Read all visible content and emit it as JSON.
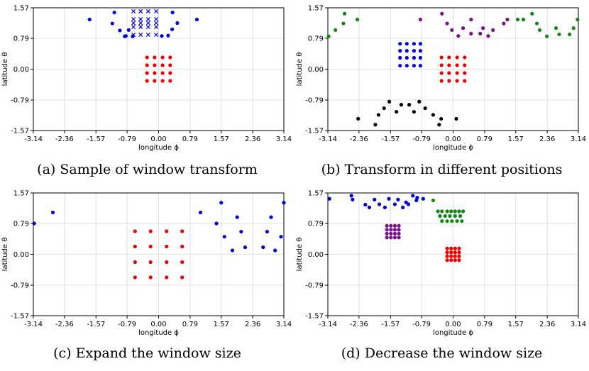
{
  "chart_data": [
    {
      "type": "scatter",
      "caption": "(a) Sample of window transform",
      "xlabel": "longitude ϕ",
      "ylabel": "latitude θ",
      "xlim": [
        -3.14,
        3.14
      ],
      "ylim": [
        -1.57,
        1.57
      ],
      "xticks": [
        -3.14,
        -2.36,
        -1.57,
        -0.79,
        0.0,
        0.79,
        1.57,
        2.36,
        3.14
      ],
      "xtick_labels": [
        "-3.14",
        "-2.36",
        "-1.57",
        "-0.79",
        "0.00",
        "0.79",
        "1.57",
        "2.36",
        "3.14"
      ],
      "yticks": [
        1.57,
        0.79,
        0.0,
        -0.79,
        -1.57
      ],
      "ytick_labels": [
        "1.57",
        "0.79",
        "0.00",
        "-0.79",
        "-1.57"
      ],
      "grid": true,
      "series": [
        {
          "name": "sampled window (blue dots)",
          "color": "#0000dd",
          "marker": "dot",
          "x": [
            -1.73,
            -1.11,
            -1.16,
            -0.97,
            -0.85,
            -0.65,
            -0.75,
            0.35,
            0.47,
            0.34,
            0.24,
            0.08,
            0.96,
            -0.82
          ],
          "y": [
            1.27,
            1.45,
            1.17,
            0.99,
            0.84,
            0.84,
            1.0,
            1.45,
            1.18,
            1.02,
            0.86,
            0.85,
            1.27,
            0.85
          ]
        },
        {
          "name": "original window (blue crosses)",
          "color": "#0000dd",
          "marker": "x",
          "x": [
            -0.63,
            -0.45,
            -0.26,
            -0.06,
            -0.63,
            -0.45,
            -0.26,
            -0.06,
            -0.63,
            -0.45,
            -0.26,
            -0.06,
            -0.63,
            -0.45,
            -0.26,
            -0.06,
            -0.63,
            -0.45,
            -0.26,
            -0.06
          ],
          "y": [
            1.48,
            1.48,
            1.48,
            1.48,
            1.28,
            1.28,
            1.28,
            1.28,
            1.08,
            1.08,
            1.08,
            1.08,
            0.88,
            0.88,
            0.88,
            0.88,
            1.18,
            1.18,
            1.18,
            1.18
          ]
        },
        {
          "name": "equator window (red dots)",
          "color": "#ee0000",
          "marker": "dot",
          "x": [
            -0.29,
            -0.1,
            0.1,
            0.29,
            -0.29,
            -0.1,
            0.1,
            0.29,
            -0.29,
            -0.1,
            0.1,
            0.29,
            -0.29,
            -0.1,
            0.1,
            0.29
          ],
          "y": [
            0.3,
            0.3,
            0.3,
            0.3,
            0.1,
            0.1,
            0.1,
            0.1,
            -0.1,
            -0.1,
            -0.1,
            -0.1,
            -0.3,
            -0.3,
            -0.3,
            -0.3
          ]
        }
      ]
    },
    {
      "type": "scatter",
      "caption": "(b) Transform in different positions",
      "xlabel": "longitude ϕ",
      "ylabel": "latitude θ",
      "xlim": [
        -3.14,
        3.14
      ],
      "ylim": [
        -1.57,
        1.57
      ],
      "xticks": [
        -3.14,
        -2.36,
        -1.57,
        -0.79,
        0.0,
        0.79,
        1.57,
        2.36,
        3.14
      ],
      "xtick_labels": [
        "-3.14",
        "-2.36",
        "-1.57",
        "-0.79",
        "0.00",
        "0.79",
        "1.57",
        "2.36",
        "3.14"
      ],
      "yticks": [
        1.57,
        0.79,
        0.0,
        -0.79,
        -1.57
      ],
      "ytick_labels": [
        "1.57",
        "0.79",
        "0.00",
        "-0.79",
        "-1.57"
      ],
      "grid": true,
      "series": [
        {
          "name": "green window",
          "color": "#118811",
          "marker": "dot",
          "x": [
            -3.12,
            -2.95,
            -2.75,
            -2.72,
            -2.4,
            1.62,
            1.98,
            2.1,
            2.17,
            2.35,
            2.58,
            2.66,
            2.92,
            3.12,
            3.02,
            1.76
          ],
          "y": [
            0.84,
            1.0,
            1.17,
            1.42,
            1.27,
            1.27,
            1.42,
            1.17,
            1.0,
            0.84,
            1.05,
            0.89,
            0.89,
            1.27,
            1.05,
            1.27
          ]
        },
        {
          "name": "purple window",
          "color": "#771188",
          "marker": "dot",
          "x": [
            -0.82,
            -0.28,
            -0.15,
            -0.03,
            0.13,
            0.25,
            0.45,
            0.68,
            0.75,
            0.88,
            1.0,
            1.27,
            0.45,
            1.36
          ],
          "y": [
            1.27,
            1.42,
            1.17,
            1.0,
            0.85,
            1.05,
            0.91,
            0.91,
            1.05,
            0.85,
            1.0,
            1.17,
            1.27,
            1.27
          ]
        },
        {
          "name": "blue window",
          "color": "#0000dd",
          "marker": "dot",
          "x": [
            -1.33,
            -1.16,
            -0.98,
            -0.82,
            -1.33,
            -1.16,
            -0.98,
            -0.82,
            -1.33,
            -1.16,
            -0.98,
            -0.82,
            -1.33,
            -1.16,
            -0.98,
            -0.82
          ],
          "y": [
            0.65,
            0.65,
            0.65,
            0.65,
            0.47,
            0.47,
            0.47,
            0.47,
            0.29,
            0.29,
            0.29,
            0.29,
            0.09,
            0.09,
            0.09,
            0.09
          ]
        },
        {
          "name": "red window",
          "color": "#ee0000",
          "marker": "dot",
          "x": [
            -0.29,
            -0.1,
            0.1,
            0.29,
            -0.29,
            -0.1,
            0.1,
            0.29,
            -0.29,
            -0.1,
            0.1,
            0.29,
            -0.29,
            -0.1,
            0.1,
            0.29
          ],
          "y": [
            0.3,
            0.3,
            0.3,
            0.3,
            0.1,
            0.1,
            0.1,
            0.1,
            -0.1,
            -0.1,
            -0.1,
            -0.1,
            -0.3,
            -0.3,
            -0.3,
            -0.3
          ]
        },
        {
          "name": "black window",
          "color": "#000000",
          "marker": "dot",
          "x": [
            -2.38,
            -1.95,
            -1.87,
            -1.73,
            -1.6,
            -1.42,
            -1.3,
            -1.1,
            -0.98,
            -0.85,
            -0.7,
            -0.5,
            -0.35,
            -0.3,
            0.08
          ],
          "y": [
            -1.27,
            -1.42,
            -1.17,
            -1.0,
            -0.83,
            -1.09,
            -0.91,
            -0.91,
            -1.09,
            -0.83,
            -1.0,
            -1.17,
            -1.42,
            -1.27,
            -1.27
          ]
        }
      ]
    },
    {
      "type": "scatter",
      "caption": "(c) Expand the window size",
      "xlabel": "longitude ϕ",
      "ylabel": "latitude θ",
      "xlim": [
        -3.14,
        3.14
      ],
      "ylim": [
        -1.57,
        1.57
      ],
      "xticks": [
        -3.14,
        -2.36,
        -1.57,
        -0.79,
        0.0,
        0.79,
        1.57,
        2.36,
        3.14
      ],
      "xtick_labels": [
        "-3.14",
        "-2.36",
        "-1.57",
        "-0.79",
        "0.00",
        "0.79",
        "1.57",
        "2.36",
        "3.14"
      ],
      "yticks": [
        1.57,
        0.79,
        0.0,
        -0.79,
        -1.57
      ],
      "ytick_labels": [
        "1.57",
        "0.79",
        "0.00",
        "-0.79",
        "-1.57"
      ],
      "grid": true,
      "series": [
        {
          "name": "expanded window (blue)",
          "color": "#0000dd",
          "marker": "dot",
          "x": [
            -3.12,
            -2.65,
            1.05,
            1.45,
            1.57,
            1.65,
            1.85,
            1.97,
            2.07,
            2.17,
            2.62,
            2.72,
            2.82,
            2.92,
            3.07,
            3.14
          ],
          "y": [
            0.79,
            1.07,
            1.07,
            0.79,
            1.32,
            0.45,
            0.1,
            0.95,
            0.58,
            0.18,
            0.18,
            0.58,
            0.95,
            0.1,
            0.45,
            1.32
          ]
        },
        {
          "name": "expanded equator window (red)",
          "color": "#ee0000",
          "marker": "dot",
          "x": [
            -0.59,
            -0.2,
            0.2,
            0.59,
            -0.59,
            -0.2,
            0.2,
            0.59,
            -0.59,
            -0.2,
            0.2,
            0.59,
            -0.59,
            -0.2,
            0.2,
            0.59
          ],
          "y": [
            0.59,
            0.59,
            0.59,
            0.59,
            0.2,
            0.2,
            0.2,
            0.2,
            -0.2,
            -0.2,
            -0.2,
            -0.2,
            -0.59,
            -0.59,
            -0.59,
            -0.59
          ]
        }
      ]
    },
    {
      "type": "scatter",
      "caption": "(d) Decrease the window size",
      "xlabel": "longitude ϕ",
      "ylabel": "latitude θ",
      "xlim": [
        -3.14,
        3.14
      ],
      "ylim": [
        -1.57,
        1.57
      ],
      "xticks": [
        -3.14,
        -2.36,
        -1.57,
        -0.79,
        0.0,
        0.79,
        1.57,
        2.36,
        3.14
      ],
      "xtick_labels": [
        "-3.14",
        "-2.36",
        "-1.57",
        "-0.79",
        "0.00",
        "0.79",
        "1.57",
        "2.36",
        "3.14"
      ],
      "yticks": [
        1.57,
        0.79,
        0.0,
        -0.79,
        -1.57
      ],
      "ytick_labels": [
        "1.57",
        "0.79",
        "0.00",
        "-0.79",
        "-1.57"
      ],
      "grid": true,
      "series": [
        {
          "name": "shrunk window near pole (blue)",
          "color": "#0000dd",
          "marker": "dot",
          "x": [
            -3.1,
            -2.55,
            -2.52,
            -2.2,
            -2.1,
            -1.97,
            -1.85,
            -1.71,
            -1.61,
            -1.46,
            -1.38,
            -1.26,
            -1.12,
            -1.01,
            -0.92,
            -0.75,
            -0.9,
            -1.18
          ],
          "y": [
            1.42,
            1.5,
            1.4,
            1.27,
            1.2,
            1.4,
            1.28,
            1.2,
            1.42,
            1.28,
            1.4,
            1.2,
            1.28,
            1.5,
            1.38,
            1.42,
            1.45,
            1.33
          ]
        },
        {
          "name": "shrunk window (green)",
          "color": "#118811",
          "marker": "dot",
          "x": [
            -0.5,
            -0.38,
            -0.28,
            -0.15,
            -0.05,
            0.05,
            0.15,
            0.25,
            -0.33,
            -0.2,
            -0.08,
            0.05,
            0.18,
            -0.28,
            -0.15,
            -0.03,
            0.1,
            0.22
          ],
          "y": [
            1.38,
            1.1,
            1.1,
            1.1,
            1.1,
            1.1,
            1.1,
            1.1,
            0.98,
            0.98,
            0.98,
            0.98,
            0.98,
            0.85,
            0.85,
            0.85,
            0.85,
            0.85
          ]
        },
        {
          "name": "shrunk window (purple)",
          "color": "#771188",
          "marker": "dot",
          "x": [
            -1.66,
            -1.56,
            -1.46,
            -1.36,
            -1.66,
            -1.56,
            -1.46,
            -1.36,
            -1.66,
            -1.56,
            -1.46,
            -1.36,
            -1.66,
            -1.56,
            -1.46,
            -1.36
          ],
          "y": [
            0.73,
            0.73,
            0.73,
            0.73,
            0.63,
            0.63,
            0.63,
            0.63,
            0.53,
            0.53,
            0.53,
            0.53,
            0.43,
            0.43,
            0.43,
            0.43
          ]
        },
        {
          "name": "shrunk equator window (red)",
          "color": "#ee0000",
          "marker": "dot",
          "x": [
            -0.15,
            -0.05,
            0.05,
            0.15,
            -0.15,
            -0.05,
            0.05,
            0.15,
            -0.15,
            -0.05,
            0.05,
            0.15,
            -0.15,
            -0.05,
            0.05,
            0.15
          ],
          "y": [
            0.15,
            0.15,
            0.15,
            0.15,
            0.05,
            0.05,
            0.05,
            0.05,
            -0.05,
            -0.05,
            -0.05,
            -0.05,
            -0.15,
            -0.15,
            -0.15,
            -0.15
          ]
        }
      ]
    }
  ]
}
